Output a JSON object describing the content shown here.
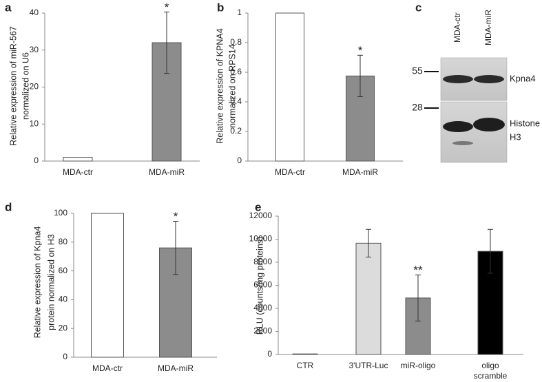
{
  "chart_data": [
    {
      "type": "bar",
      "panel": "a",
      "y_label": [
        "Relative expression of miR-567",
        "normalized on U6"
      ],
      "categories": [
        "MDA-ctr",
        "MDA-miR"
      ],
      "values": [
        1,
        32
      ],
      "errors": [
        null,
        8.3
      ],
      "colors": [
        "#ffffff",
        "#8c8c8c"
      ],
      "significance": [
        null,
        "*"
      ],
      "ylim": [
        0,
        40
      ],
      "yticks": [
        0,
        10,
        20,
        30,
        40
      ]
    },
    {
      "type": "bar",
      "panel": "b",
      "y_label": [
        "Relative expression of KPNA4",
        "normalized on RPS14"
      ],
      "categories": [
        "MDA-ctr",
        "MDA-miR"
      ],
      "values": [
        1,
        0.575
      ],
      "errors": [
        null,
        0.14
      ],
      "colors": [
        "#ffffff",
        "#8c8c8c"
      ],
      "significance": [
        null,
        "*"
      ],
      "ylim": [
        0,
        1
      ],
      "yticks": [
        0,
        0.2,
        0.4,
        0.6,
        0.8,
        1
      ]
    },
    {
      "type": "blot",
      "panel": "c",
      "lanes": [
        "MDA-ctr",
        "MDA-miR"
      ],
      "markers": [
        55,
        28
      ],
      "bands": [
        [
          "Kpna4"
        ],
        [
          "Histone",
          "H3"
        ]
      ]
    },
    {
      "type": "bar",
      "panel": "d",
      "y_label": [
        "Relative expression of Kpna4",
        "protein normalized on H3"
      ],
      "categories": [
        "MDA-ctr",
        "MDA-miR"
      ],
      "values": [
        100,
        76
      ],
      "errors": [
        null,
        18.5
      ],
      "colors": [
        "#ffffff",
        "#8c8c8c"
      ],
      "significance": [
        null,
        "*"
      ],
      "ylim": [
        0,
        100
      ],
      "yticks": [
        0,
        20,
        40,
        60,
        80,
        100
      ]
    },
    {
      "type": "bar",
      "panel": "e",
      "y_label": [
        "RLU (counts/mg proteins)"
      ],
      "categories": [
        [
          "CTR"
        ],
        [
          "3'UTR-Luc"
        ],
        [
          "miR-oligo"
        ],
        [
          "oligo",
          "scramble"
        ]
      ],
      "values": [
        50,
        9650,
        4900,
        8950
      ],
      "errors": [
        null,
        1200,
        2000,
        1900
      ],
      "colors": [
        "#222222",
        "#dcdcdc",
        "#8c8c8c",
        "#000000"
      ],
      "significance": [
        null,
        null,
        "**",
        null
      ],
      "ylim": [
        0,
        12000
      ],
      "yticks": [
        0,
        2000,
        4000,
        6000,
        8000,
        10000,
        12000
      ]
    }
  ]
}
